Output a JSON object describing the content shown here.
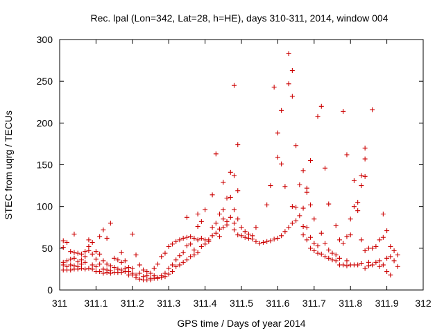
{
  "chart_data": {
    "type": "scatter",
    "title": "Rec. lpal (Lon=342, Lat=28, h=HE), days 310-311, 2014, window 004",
    "xlabel": "GPS time / Days of year 2014",
    "ylabel": "STEC from uqrg / TECUs",
    "xlim": [
      311,
      312
    ],
    "ylim": [
      0,
      300
    ],
    "xticks": [
      311,
      311.1,
      311.2,
      311.3,
      311.4,
      311.5,
      311.6,
      311.7,
      311.8,
      311.9,
      312
    ],
    "xtick_labels": [
      "311",
      "311.1",
      "311.2",
      "311.3",
      "311.4",
      "311.5",
      "311.6",
      "311.7",
      "311.8",
      "311.9",
      "312"
    ],
    "yticks": [
      0,
      50,
      100,
      150,
      200,
      250,
      300
    ],
    "ytick_labels": [
      "0",
      "50",
      "100",
      "150",
      "200",
      "250",
      "300"
    ],
    "grid": false,
    "marker": "+",
    "color": "#cc0000",
    "points": [
      [
        311.01,
        59
      ],
      [
        311.01,
        51
      ],
      [
        311.01,
        33
      ],
      [
        311.01,
        30
      ],
      [
        311.01,
        24
      ],
      [
        311.02,
        57
      ],
      [
        311.02,
        35
      ],
      [
        311.02,
        28
      ],
      [
        311.02,
        24
      ],
      [
        311.03,
        46
      ],
      [
        311.03,
        37
      ],
      [
        311.03,
        30
      ],
      [
        311.03,
        24
      ],
      [
        311.04,
        67
      ],
      [
        311.04,
        45
      ],
      [
        311.04,
        38
      ],
      [
        311.04,
        29
      ],
      [
        311.04,
        25
      ],
      [
        311.05,
        44
      ],
      [
        311.05,
        34
      ],
      [
        311.05,
        28
      ],
      [
        311.05,
        25
      ],
      [
        311.06,
        43
      ],
      [
        311.06,
        36
      ],
      [
        311.06,
        31
      ],
      [
        311.06,
        26
      ],
      [
        311.07,
        46
      ],
      [
        311.07,
        40
      ],
      [
        311.07,
        33
      ],
      [
        311.07,
        25
      ],
      [
        311.08,
        60
      ],
      [
        311.08,
        52
      ],
      [
        311.08,
        47
      ],
      [
        311.08,
        26
      ],
      [
        311.09,
        57
      ],
      [
        311.09,
        43
      ],
      [
        311.09,
        30
      ],
      [
        311.09,
        25
      ],
      [
        311.1,
        46
      ],
      [
        311.1,
        37
      ],
      [
        311.1,
        28
      ],
      [
        311.1,
        22
      ],
      [
        311.11,
        64
      ],
      [
        311.11,
        43
      ],
      [
        311.11,
        31
      ],
      [
        311.11,
        22
      ],
      [
        311.12,
        72
      ],
      [
        311.12,
        35
      ],
      [
        311.12,
        25
      ],
      [
        311.12,
        20
      ],
      [
        311.13,
        62
      ],
      [
        311.13,
        31
      ],
      [
        311.13,
        24
      ],
      [
        311.13,
        21
      ],
      [
        311.14,
        80
      ],
      [
        311.14,
        29
      ],
      [
        311.14,
        23
      ],
      [
        311.14,
        20
      ],
      [
        311.15,
        38
      ],
      [
        311.15,
        27
      ],
      [
        311.15,
        21
      ],
      [
        311.16,
        36
      ],
      [
        311.16,
        25
      ],
      [
        311.16,
        21
      ],
      [
        311.17,
        45
      ],
      [
        311.17,
        33
      ],
      [
        311.17,
        24
      ],
      [
        311.17,
        21
      ],
      [
        311.18,
        35
      ],
      [
        311.18,
        26
      ],
      [
        311.18,
        22
      ],
      [
        311.19,
        27
      ],
      [
        311.19,
        22
      ],
      [
        311.19,
        18
      ],
      [
        311.2,
        67
      ],
      [
        311.2,
        26
      ],
      [
        311.2,
        20
      ],
      [
        311.2,
        18
      ],
      [
        311.21,
        42
      ],
      [
        311.21,
        18
      ],
      [
        311.21,
        15
      ],
      [
        311.22,
        30
      ],
      [
        311.22,
        20
      ],
      [
        311.22,
        13
      ],
      [
        311.23,
        24
      ],
      [
        311.23,
        16
      ],
      [
        311.23,
        12
      ],
      [
        311.24,
        22
      ],
      [
        311.24,
        17
      ],
      [
        311.24,
        12
      ],
      [
        311.25,
        20
      ],
      [
        311.25,
        14
      ],
      [
        311.25,
        12
      ],
      [
        311.26,
        26
      ],
      [
        311.26,
        17
      ],
      [
        311.26,
        14
      ],
      [
        311.27,
        31
      ],
      [
        311.27,
        15
      ],
      [
        311.27,
        14
      ],
      [
        311.28,
        40
      ],
      [
        311.28,
        17
      ],
      [
        311.28,
        15
      ],
      [
        311.29,
        44
      ],
      [
        311.29,
        20
      ],
      [
        311.29,
        16
      ],
      [
        311.3,
        52
      ],
      [
        311.3,
        26
      ],
      [
        311.3,
        19
      ],
      [
        311.31,
        55
      ],
      [
        311.31,
        30
      ],
      [
        311.31,
        22
      ],
      [
        311.32,
        58
      ],
      [
        311.32,
        36
      ],
      [
        311.32,
        28
      ],
      [
        311.33,
        60
      ],
      [
        311.33,
        41
      ],
      [
        311.33,
        30
      ],
      [
        311.34,
        62
      ],
      [
        311.34,
        45
      ],
      [
        311.34,
        33
      ],
      [
        311.35,
        87
      ],
      [
        311.35,
        63
      ],
      [
        311.35,
        53
      ],
      [
        311.35,
        36
      ],
      [
        311.36,
        64
      ],
      [
        311.36,
        55
      ],
      [
        311.36,
        40
      ],
      [
        311.37,
        62
      ],
      [
        311.37,
        48
      ],
      [
        311.37,
        42
      ],
      [
        311.38,
        91
      ],
      [
        311.38,
        76
      ],
      [
        311.38,
        60
      ],
      [
        311.38,
        45
      ],
      [
        311.39,
        82
      ],
      [
        311.39,
        62
      ],
      [
        311.39,
        52
      ],
      [
        311.4,
        96
      ],
      [
        311.4,
        60
      ],
      [
        311.4,
        55
      ],
      [
        311.41,
        60
      ],
      [
        311.41,
        58
      ],
      [
        311.42,
        114
      ],
      [
        311.42,
        75
      ],
      [
        311.42,
        65
      ],
      [
        311.43,
        163
      ],
      [
        311.43,
        80
      ],
      [
        311.43,
        68
      ],
      [
        311.44,
        91
      ],
      [
        311.44,
        73
      ],
      [
        311.44,
        64
      ],
      [
        311.45,
        129
      ],
      [
        311.45,
        96
      ],
      [
        311.45,
        85
      ],
      [
        311.45,
        75
      ],
      [
        311.46,
        110
      ],
      [
        311.46,
        82
      ],
      [
        311.46,
        78
      ],
      [
        311.47,
        141
      ],
      [
        311.47,
        111
      ],
      [
        311.47,
        87
      ],
      [
        311.48,
        245
      ],
      [
        311.48,
        137
      ],
      [
        311.48,
        96
      ],
      [
        311.48,
        80
      ],
      [
        311.48,
        72
      ],
      [
        311.49,
        174
      ],
      [
        311.49,
        119
      ],
      [
        311.49,
        85
      ],
      [
        311.49,
        66
      ],
      [
        311.5,
        75
      ],
      [
        311.5,
        65
      ],
      [
        311.51,
        70
      ],
      [
        311.51,
        63
      ],
      [
        311.52,
        67
      ],
      [
        311.52,
        62
      ],
      [
        311.53,
        65
      ],
      [
        311.53,
        61
      ],
      [
        311.54,
        75
      ],
      [
        311.54,
        58
      ],
      [
        311.55,
        56
      ],
      [
        311.56,
        57
      ],
      [
        311.57,
        102
      ],
      [
        311.57,
        58
      ],
      [
        311.58,
        125
      ],
      [
        311.58,
        59
      ],
      [
        311.59,
        243
      ],
      [
        311.59,
        61
      ],
      [
        311.6,
        188
      ],
      [
        311.6,
        159
      ],
      [
        311.6,
        62
      ],
      [
        311.61,
        215
      ],
      [
        311.61,
        151
      ],
      [
        311.61,
        65
      ],
      [
        311.62,
        124
      ],
      [
        311.62,
        70
      ],
      [
        311.63,
        283
      ],
      [
        311.63,
        247
      ],
      [
        311.63,
        75
      ],
      [
        311.64,
        263
      ],
      [
        311.64,
        232
      ],
      [
        311.64,
        100
      ],
      [
        311.64,
        80
      ],
      [
        311.65,
        173
      ],
      [
        311.65,
        99
      ],
      [
        311.65,
        83
      ],
      [
        311.66,
        126
      ],
      [
        311.66,
        89
      ],
      [
        311.67,
        143
      ],
      [
        311.67,
        98
      ],
      [
        311.67,
        76
      ],
      [
        311.67,
        66
      ],
      [
        311.68,
        122
      ],
      [
        311.68,
        117
      ],
      [
        311.68,
        75
      ],
      [
        311.68,
        60
      ],
      [
        311.69,
        155
      ],
      [
        311.69,
        102
      ],
      [
        311.69,
        63
      ],
      [
        311.69,
        50
      ],
      [
        311.7,
        85
      ],
      [
        311.7,
        56
      ],
      [
        311.7,
        47
      ],
      [
        311.71,
        208
      ],
      [
        311.71,
        53
      ],
      [
        311.71,
        44
      ],
      [
        311.72,
        220
      ],
      [
        311.72,
        68
      ],
      [
        311.72,
        43
      ],
      [
        311.73,
        146
      ],
      [
        311.73,
        56
      ],
      [
        311.73,
        40
      ],
      [
        311.74,
        103
      ],
      [
        311.74,
        48
      ],
      [
        311.74,
        38
      ],
      [
        311.75,
        44
      ],
      [
        311.75,
        36
      ],
      [
        311.76,
        77
      ],
      [
        311.76,
        42
      ],
      [
        311.76,
        35
      ],
      [
        311.77,
        60
      ],
      [
        311.77,
        38
      ],
      [
        311.77,
        30
      ],
      [
        311.78,
        214
      ],
      [
        311.78,
        56
      ],
      [
        311.78,
        30
      ],
      [
        311.79,
        162
      ],
      [
        311.79,
        64
      ],
      [
        311.79,
        35
      ],
      [
        311.79,
        29
      ],
      [
        311.8,
        85
      ],
      [
        311.8,
        66
      ],
      [
        311.8,
        30
      ],
      [
        311.81,
        131
      ],
      [
        311.81,
        100
      ],
      [
        311.81,
        30
      ],
      [
        311.82,
        105
      ],
      [
        311.82,
        95
      ],
      [
        311.82,
        30
      ],
      [
        311.83,
        137
      ],
      [
        311.83,
        125
      ],
      [
        311.83,
        60
      ],
      [
        311.83,
        32
      ],
      [
        311.84,
        170
      ],
      [
        311.84,
        157
      ],
      [
        311.84,
        136
      ],
      [
        311.84,
        47
      ],
      [
        311.84,
        26
      ],
      [
        311.85,
        50
      ],
      [
        311.85,
        33
      ],
      [
        311.85,
        29
      ],
      [
        311.86,
        216
      ],
      [
        311.86,
        50
      ],
      [
        311.86,
        30
      ],
      [
        311.87,
        52
      ],
      [
        311.87,
        33
      ],
      [
        311.88,
        60
      ],
      [
        311.88,
        35
      ],
      [
        311.88,
        28
      ],
      [
        311.89,
        91
      ],
      [
        311.89,
        63
      ],
      [
        311.89,
        30
      ],
      [
        311.9,
        71
      ],
      [
        311.9,
        38
      ],
      [
        311.9,
        22
      ],
      [
        311.91,
        52
      ],
      [
        311.91,
        40
      ],
      [
        311.91,
        18
      ],
      [
        311.92,
        47
      ],
      [
        311.92,
        35
      ],
      [
        311.93,
        42
      ],
      [
        311.93,
        28
      ]
    ]
  }
}
